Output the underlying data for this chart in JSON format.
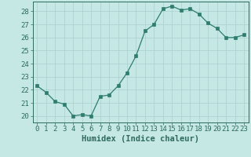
{
  "x": [
    0,
    1,
    2,
    3,
    4,
    5,
    6,
    7,
    8,
    9,
    10,
    11,
    12,
    13,
    14,
    15,
    16,
    17,
    18,
    19,
    20,
    21,
    22,
    23
  ],
  "y": [
    22.3,
    21.8,
    21.1,
    20.9,
    20.0,
    20.1,
    20.0,
    21.5,
    21.6,
    22.3,
    23.3,
    24.6,
    26.5,
    27.0,
    28.2,
    28.4,
    28.1,
    28.2,
    27.8,
    27.1,
    26.7,
    26.0,
    26.0,
    26.2
  ],
  "line_color": "#2e7d6e",
  "marker": "s",
  "markersize": 2.2,
  "linewidth": 0.9,
  "bg_color": "#c5e8e5",
  "grid_color": "#aacfcc",
  "xlabel": "Humidex (Indice chaleur)",
  "xlabel_fontsize": 7.5,
  "yticks": [
    20,
    21,
    22,
    23,
    24,
    25,
    26,
    27,
    28
  ],
  "xticks": [
    0,
    1,
    2,
    3,
    4,
    5,
    6,
    7,
    8,
    9,
    10,
    11,
    12,
    13,
    14,
    15,
    16,
    17,
    18,
    19,
    20,
    21,
    22,
    23
  ],
  "ylim": [
    19.5,
    28.75
  ],
  "xlim": [
    -0.5,
    23.5
  ],
  "tick_fontsize": 6.5,
  "tick_color": "#2e6b5e",
  "spine_color": "#2e6b5e",
  "label_color": "#2e6b5e"
}
